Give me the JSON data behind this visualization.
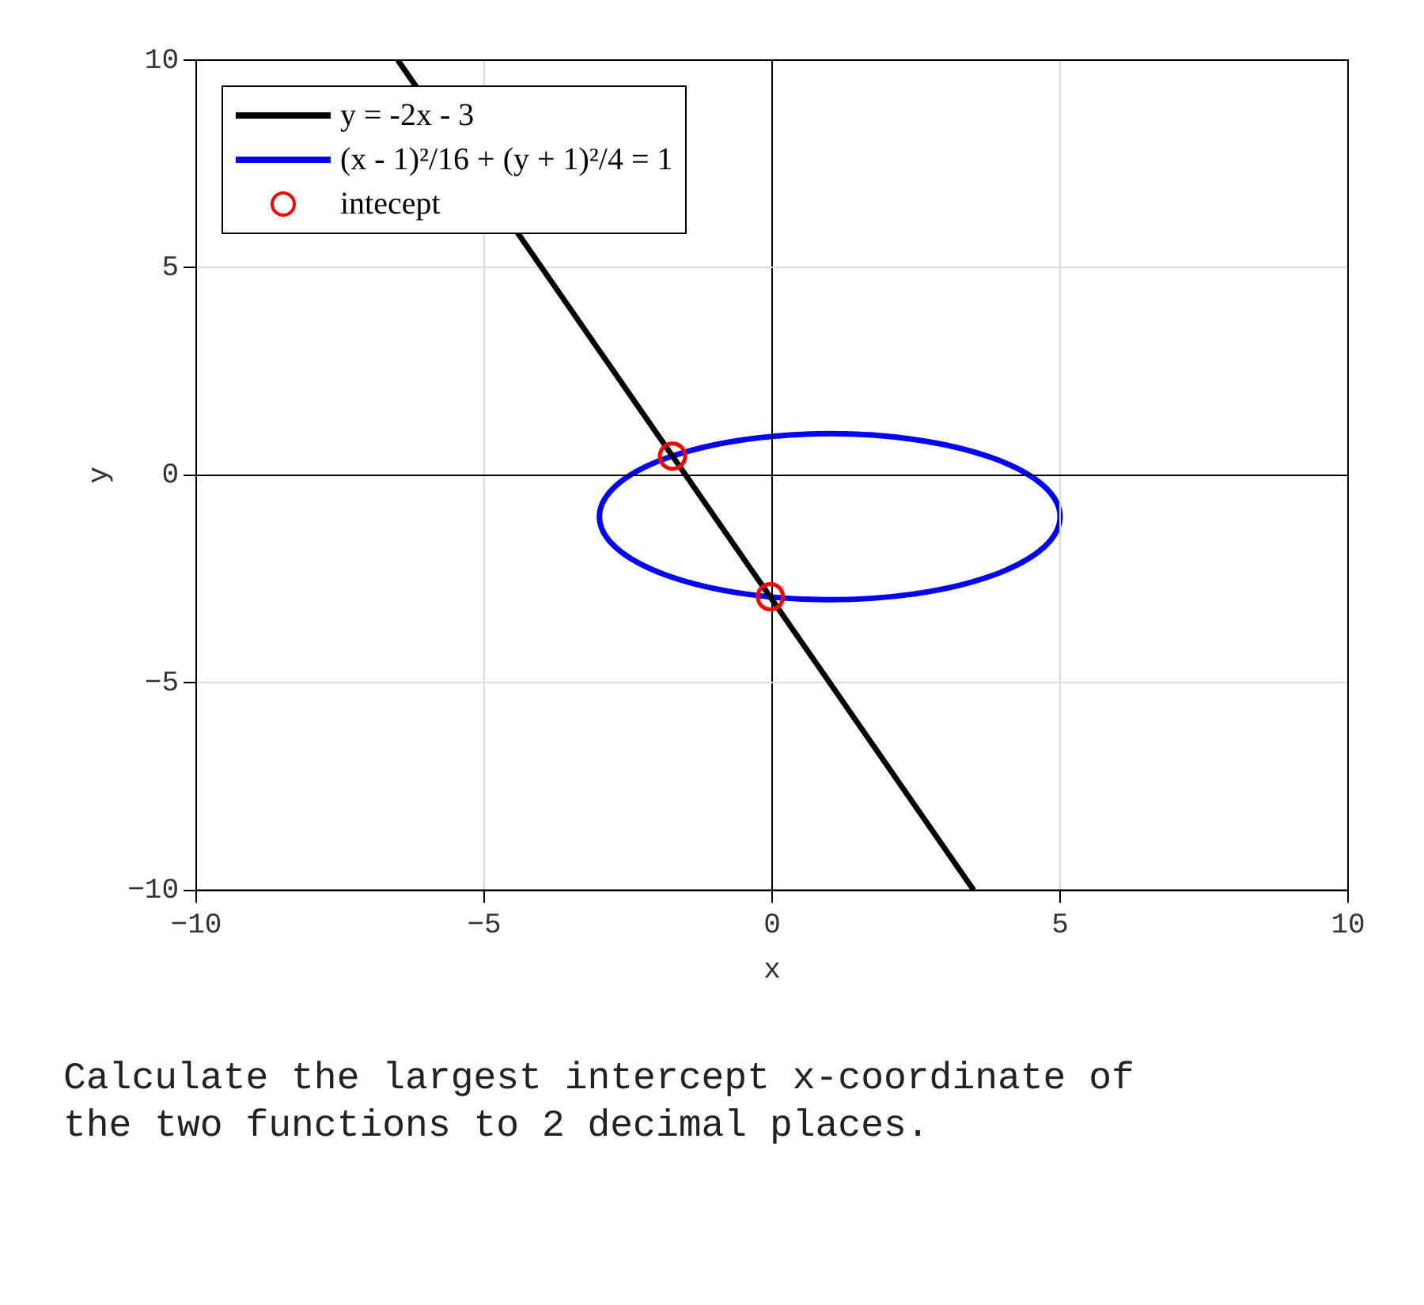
{
  "chart_data": {
    "type": "line",
    "xlabel": "x",
    "ylabel": "y",
    "xlim": [
      -10,
      10
    ],
    "ylim": [
      -10,
      10
    ],
    "xticks": [
      -10,
      -5,
      0,
      5,
      10
    ],
    "yticks": [
      -10,
      -5,
      0,
      5,
      10
    ],
    "grid": true,
    "legend": "top left",
    "annotations": [
      "(x - 1)²/16 + (y + 1)²/4 = 1",
      "Calculate the largest intercept x-coordinate of the two functions to 2 decimal places."
    ],
    "series": [
      {
        "name": "y = -2x - 3",
        "type": "line",
        "color": "#000000",
        "marker": "none",
        "x": [
          -6.5,
          3.5
        ],
        "values": [
          10,
          -10
        ]
      },
      {
        "name": "intecept",
        "type": "scatter",
        "color": "#ff0000",
        "marker": "circle",
        "x": [
          -1.73,
          -0.03
        ],
        "values": [
          0.46,
          -2.93
        ]
      }
    ]
  }
}
